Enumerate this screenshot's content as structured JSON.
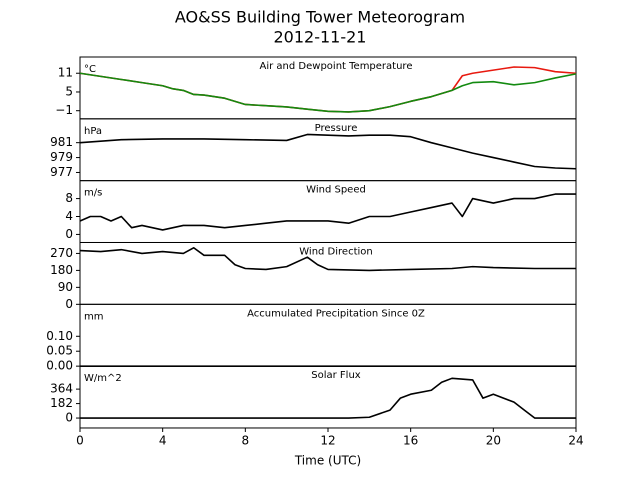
{
  "figure": {
    "title": "AO&SS Building Tower Meteorogram",
    "subtitle": "2012-11-21",
    "xlabel": "Time (UTC)"
  },
  "chart_data": [
    {
      "type": "line",
      "title": "Air and Dewpoint Temperature",
      "unit": "°C",
      "xlim": [
        0,
        24
      ],
      "ylim": [
        -3.6,
        16.2
      ],
      "yticks": [
        {
          "value": -1,
          "label": "−1"
        },
        5,
        11
      ],
      "x": [
        0,
        1,
        2,
        3,
        4,
        4.5,
        5,
        5.5,
        6,
        7,
        8,
        9,
        10,
        11,
        12,
        13,
        14,
        15,
        16,
        17,
        18,
        18.5,
        19,
        20,
        21,
        22,
        23,
        24
      ],
      "series": [
        {
          "color": "#e8190f",
          "values": [
            11,
            10,
            9,
            8,
            7,
            6,
            5.5,
            4.2,
            4,
            3,
            1,
            0.6,
            0.2,
            -0.5,
            -1.2,
            -1.4,
            -1,
            0.3,
            2,
            3.5,
            5.5,
            10.2,
            11,
            12,
            13,
            12.8,
            11.5,
            11
          ]
        },
        {
          "color": "#138a10",
          "values": [
            11,
            10,
            9,
            8,
            7,
            6,
            5.5,
            4.2,
            4,
            3,
            1,
            0.6,
            0.2,
            -0.5,
            -1.2,
            -1.4,
            -1,
            0.3,
            2,
            3.5,
            5.5,
            7,
            8,
            8.3,
            7.3,
            8,
            9.5,
            10.8
          ]
        }
      ]
    },
    {
      "type": "line",
      "title": "Pressure",
      "unit": "hPa",
      "xlim": [
        0,
        24
      ],
      "ylim": [
        975.9,
        984.2
      ],
      "yticks": [
        977,
        979,
        981
      ],
      "x": [
        0,
        1,
        2,
        4,
        6,
        8,
        10,
        11,
        12,
        13,
        14,
        15,
        16,
        17,
        18,
        19,
        20,
        21,
        22,
        23,
        24
      ],
      "series": [
        {
          "color": "#000000",
          "values": [
            981,
            981.2,
            981.4,
            981.5,
            981.5,
            981.4,
            981.3,
            982.1,
            982,
            981.9,
            982,
            982,
            981.8,
            981,
            980.3,
            979.6,
            979,
            978.4,
            977.8,
            977.6,
            977.5
          ]
        }
      ]
    },
    {
      "type": "line",
      "title": "Wind Speed",
      "unit": "m/s",
      "xlim": [
        0,
        24
      ],
      "ylim": [
        -1.8,
        12
      ],
      "yticks": [
        0,
        4,
        8
      ],
      "x": [
        0,
        0.5,
        1,
        1.5,
        2,
        2.5,
        3,
        4,
        5,
        6,
        7,
        8,
        9,
        10,
        11,
        12,
        13,
        14,
        15,
        16,
        17,
        18,
        18.5,
        19,
        20,
        21,
        22,
        23,
        24
      ],
      "series": [
        {
          "color": "#000000",
          "values": [
            3,
            4,
            4,
            3,
            4,
            1.5,
            2,
            1,
            2,
            2,
            1.5,
            2,
            2.5,
            3,
            3,
            3,
            2.5,
            4,
            4,
            5,
            6,
            7,
            4,
            8,
            7,
            8,
            8,
            9,
            9
          ]
        }
      ]
    },
    {
      "type": "line",
      "title": "Wind Direction",
      "xlim": [
        0,
        24
      ],
      "ylim": [
        0,
        328
      ],
      "yticks": [
        0,
        90,
        180,
        270
      ],
      "x": [
        0,
        1,
        2,
        3,
        4,
        5,
        5.5,
        6,
        7,
        7.5,
        8,
        9,
        10,
        11,
        11.5,
        12,
        14,
        16,
        18,
        19,
        20,
        22,
        24
      ],
      "series": [
        {
          "color": "#000000",
          "values": [
            285,
            280,
            290,
            270,
            280,
            270,
            300,
            260,
            260,
            210,
            190,
            185,
            200,
            250,
            210,
            185,
            180,
            185,
            190,
            200,
            195,
            190,
            190
          ]
        }
      ]
    },
    {
      "type": "line",
      "title": "Accumulated Precipitation Since 0Z",
      "unit": "mm",
      "xlim": [
        0,
        24
      ],
      "ylim": [
        0,
        0.207
      ],
      "yticks": [
        {
          "value": 0,
          "label": "0.00"
        },
        {
          "value": 0.05,
          "label": "0.05"
        },
        {
          "value": 0.1,
          "label": "0.10"
        }
      ],
      "x": [
        0,
        24
      ],
      "series": [
        {
          "color": "#000000",
          "values": [
            0,
            0
          ]
        }
      ]
    },
    {
      "type": "line",
      "title": "Solar Flux",
      "unit": "W/m^2",
      "xlim": [
        0,
        24
      ],
      "ylim": [
        -125,
        653
      ],
      "yticks": [
        0,
        182,
        364
      ],
      "xticks": [
        0,
        4,
        8,
        12,
        16,
        20,
        24
      ],
      "x": [
        0,
        13,
        14,
        15,
        15.5,
        16,
        17,
        17.5,
        18,
        19,
        19.5,
        20,
        21,
        21.5,
        22,
        24
      ],
      "series": [
        {
          "color": "#000000",
          "values": [
            0,
            0,
            10,
            100,
            250,
            300,
            350,
            450,
            500,
            480,
            250,
            300,
            200,
            100,
            0,
            0
          ]
        }
      ]
    }
  ]
}
